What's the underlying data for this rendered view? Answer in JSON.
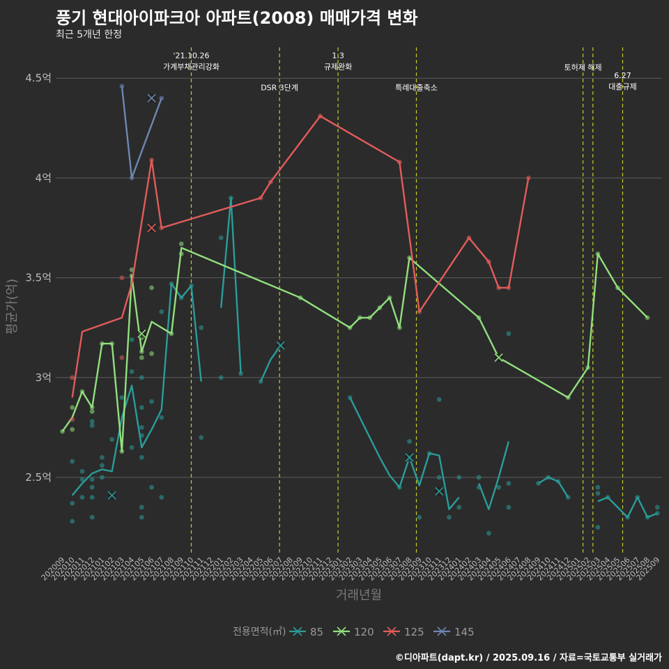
{
  "header": {
    "title": "풍기 현대아이파크아 아파트(2008) 매매가격 변화",
    "subtitle": "최근 5개년 한정",
    "caption": "©디아파트(dapt.kr) / 2025.09.16 / 자료=국토교통부 실거래가"
  },
  "chart_data": {
    "type": "line",
    "xlabel": "거래년월",
    "ylabel": "평균가(억)",
    "ylim": [
      2.1,
      4.6
    ],
    "yticks": [
      {
        "value": 2.5,
        "label": "2.5억"
      },
      {
        "value": 3.0,
        "label": "3억"
      },
      {
        "value": 3.5,
        "label": "3.5억"
      },
      {
        "value": 4.0,
        "label": "4억"
      },
      {
        "value": 4.5,
        "label": "4.5억"
      }
    ],
    "categories": [
      "202009",
      "202010",
      "202011",
      "202012",
      "202101",
      "202102",
      "202103",
      "202104",
      "202105",
      "202106",
      "202107",
      "202108",
      "202109",
      "202110",
      "202111",
      "202112",
      "202201",
      "202202",
      "202203",
      "202204",
      "202205",
      "202206",
      "202207",
      "202208",
      "202209",
      "202210",
      "202211",
      "202212",
      "202301",
      "202302",
      "202303",
      "202304",
      "202305",
      "202306",
      "202307",
      "202308",
      "202309",
      "202310",
      "202311",
      "202312",
      "202401",
      "202402",
      "202403",
      "202404",
      "202405",
      "202406",
      "202407",
      "202408",
      "202409",
      "202410",
      "202411",
      "202412",
      "202501",
      "202502",
      "202503",
      "202504",
      "202505",
      "202506",
      "202507",
      "202508",
      "202509"
    ],
    "events": [
      {
        "x": 13.0,
        "label_lines": [
          "'21.10.26",
          "가계부채관리강화"
        ],
        "y": 4.6
      },
      {
        "x": 21.9,
        "label_lines": [
          "DSR 3단계"
        ],
        "y": 4.44
      },
      {
        "x": 27.8,
        "label_lines": [
          "1.3",
          "규제완화"
        ],
        "y": 4.6
      },
      {
        "x": 35.7,
        "label_lines": [
          "특례대출축소"
        ],
        "y": 4.44
      },
      {
        "x": 52.5,
        "label_lines": [
          "토허제 해제"
        ],
        "y": 4.54
      },
      {
        "x": 53.5,
        "label_lines": [],
        "y": 4.54
      },
      {
        "x": 56.5,
        "label_lines": [
          "6.27",
          "대출규제"
        ],
        "y": 4.5
      }
    ],
    "legend": {
      "title": "전용면적(㎡)",
      "position": "bottom"
    },
    "series": [
      {
        "name": "85",
        "color": "#2a9d99",
        "line_segments": [
          [
            [
              1,
              2.41
            ],
            [
              2,
              2.47
            ],
            [
              3,
              2.52
            ],
            [
              4,
              2.54
            ],
            [
              5,
              2.53
            ],
            [
              6,
              2.8
            ],
            [
              7,
              2.96
            ],
            [
              8,
              2.65
            ],
            [
              9,
              2.74
            ],
            [
              10,
              2.84
            ],
            [
              11,
              3.47
            ],
            [
              12,
              3.4
            ],
            [
              13,
              3.46
            ],
            [
              14,
              2.98
            ]
          ],
          [
            [
              16,
              3.35
            ],
            [
              17,
              3.9
            ],
            [
              18,
              3.02
            ]
          ],
          [
            [
              20,
              2.98
            ],
            [
              21,
              3.09
            ],
            [
              22,
              3.16
            ]
          ],
          [
            [
              29,
              2.9
            ],
            [
              30,
              2.8
            ],
            [
              31,
              2.7
            ],
            [
              32,
              2.6
            ],
            [
              33,
              2.51
            ],
            [
              34,
              2.45
            ],
            [
              35,
              2.6
            ],
            [
              36,
              2.46
            ],
            [
              37,
              2.62
            ],
            [
              38,
              2.61
            ],
            [
              39,
              2.34
            ],
            [
              40,
              2.4
            ]
          ],
          [
            [
              42,
              2.47
            ],
            [
              43,
              2.34
            ],
            [
              44,
              2.5
            ],
            [
              45,
              2.68
            ]
          ],
          [
            [
              48,
              2.47
            ],
            [
              49,
              2.5
            ],
            [
              50,
              2.48
            ],
            [
              51,
              2.4
            ]
          ],
          [
            [
              54,
              2.38
            ],
            [
              55,
              2.4
            ],
            [
              57,
              2.3
            ],
            [
              58,
              2.4
            ],
            [
              59,
              2.3
            ],
            [
              60,
              2.32
            ]
          ]
        ],
        "points": [
          [
            1,
            2.28
          ],
          [
            1,
            2.37
          ],
          [
            1,
            2.58
          ],
          [
            2,
            2.4
          ],
          [
            2,
            2.49
          ],
          [
            2,
            2.53
          ],
          [
            3,
            2.3
          ],
          [
            3,
            2.4
          ],
          [
            3,
            2.45
          ],
          [
            3,
            2.49
          ],
          [
            3,
            2.76
          ],
          [
            3,
            2.78
          ],
          [
            4,
            2.5
          ],
          [
            4,
            2.56
          ],
          [
            4,
            2.6
          ],
          [
            5,
            2.69
          ],
          [
            6,
            2.9
          ],
          [
            7,
            2.65
          ],
          [
            7,
            3.03
          ],
          [
            7,
            3.19
          ],
          [
            8,
            2.3
          ],
          [
            8,
            2.35
          ],
          [
            8,
            2.6
          ],
          [
            8,
            2.71
          ],
          [
            8,
            2.75
          ],
          [
            8,
            2.85
          ],
          [
            8,
            3.0
          ],
          [
            9,
            2.45
          ],
          [
            9,
            2.88
          ],
          [
            10,
            2.4
          ],
          [
            10,
            2.8
          ],
          [
            10,
            3.33
          ],
          [
            11,
            3.47
          ],
          [
            12,
            3.4
          ],
          [
            13,
            3.46
          ],
          [
            14,
            2.7
          ],
          [
            14,
            3.25
          ],
          [
            16,
            3.0
          ],
          [
            16,
            3.7
          ],
          [
            17,
            3.9
          ],
          [
            18,
            3.02
          ],
          [
            20,
            2.98
          ],
          [
            22,
            3.16
          ],
          [
            29,
            2.9
          ],
          [
            34,
            2.45
          ],
          [
            35,
            2.68
          ],
          [
            35,
            2.6
          ],
          [
            36,
            2.3
          ],
          [
            37,
            2.62
          ],
          [
            38,
            2.89
          ],
          [
            38,
            2.5
          ],
          [
            39,
            2.3
          ],
          [
            40,
            2.35
          ],
          [
            40,
            2.5
          ],
          [
            42,
            2.45
          ],
          [
            42,
            2.5
          ],
          [
            43,
            2.22
          ],
          [
            44,
            2.45
          ],
          [
            45,
            2.35
          ],
          [
            45,
            2.47
          ],
          [
            45,
            3.22
          ],
          [
            48,
            2.47
          ],
          [
            49,
            2.5
          ],
          [
            50,
            2.48
          ],
          [
            51,
            2.4
          ],
          [
            54,
            2.25
          ],
          [
            54,
            2.42
          ],
          [
            54,
            2.45
          ],
          [
            55,
            2.4
          ],
          [
            57,
            2.3
          ],
          [
            58,
            2.4
          ],
          [
            59,
            2.3
          ],
          [
            60,
            2.32
          ],
          [
            60,
            2.35
          ]
        ],
        "cross_points": [
          [
            5,
            2.41
          ],
          [
            22,
            3.16
          ],
          [
            35,
            2.6
          ],
          [
            38,
            2.43
          ]
        ]
      },
      {
        "name": "120",
        "color": "#92e07e",
        "line_segments": [
          [
            [
              0,
              2.73
            ],
            [
              1,
              2.8
            ],
            [
              2,
              2.93
            ],
            [
              3,
              2.85
            ],
            [
              4,
              3.17
            ],
            [
              5,
              3.17
            ],
            [
              6,
              2.63
            ],
            [
              7,
              3.51
            ],
            [
              8,
              3.13
            ],
            [
              9,
              3.28
            ],
            [
              11,
              3.22
            ],
            [
              12,
              3.65
            ],
            [
              24,
              3.4
            ],
            [
              29,
              3.25
            ],
            [
              30,
              3.3
            ],
            [
              31,
              3.3
            ],
            [
              32,
              3.35
            ],
            [
              33,
              3.4
            ],
            [
              34,
              3.25
            ],
            [
              35,
              3.6
            ],
            [
              42,
              3.3
            ],
            [
              44,
              3.1
            ],
            [
              51,
              2.9
            ],
            [
              53,
              3.05
            ],
            [
              54,
              3.62
            ],
            [
              56,
              3.45
            ],
            [
              59,
              3.3
            ]
          ]
        ],
        "points": [
          [
            0,
            2.73
          ],
          [
            1,
            2.74
          ],
          [
            1,
            2.85
          ],
          [
            2,
            2.93
          ],
          [
            3,
            2.83
          ],
          [
            3,
            2.85
          ],
          [
            4,
            3.17
          ],
          [
            5,
            3.17
          ],
          [
            6,
            2.63
          ],
          [
            7,
            3.54
          ],
          [
            7,
            3.51
          ],
          [
            8,
            3.1
          ],
          [
            8,
            3.13
          ],
          [
            8,
            3.2
          ],
          [
            9,
            3.12
          ],
          [
            9,
            3.45
          ],
          [
            11,
            3.22
          ],
          [
            12,
            3.62
          ],
          [
            12,
            3.67
          ],
          [
            24,
            3.4
          ],
          [
            29,
            3.25
          ],
          [
            30,
            3.3
          ],
          [
            31,
            3.3
          ],
          [
            32,
            3.35
          ],
          [
            33,
            3.4
          ],
          [
            34,
            3.25
          ],
          [
            35,
            3.6
          ],
          [
            42,
            3.3
          ],
          [
            51,
            2.9
          ],
          [
            53,
            3.05
          ],
          [
            54,
            3.62
          ],
          [
            56,
            3.45
          ],
          [
            59,
            3.3
          ]
        ],
        "cross_points": [
          [
            8,
            3.22
          ],
          [
            44,
            3.1
          ]
        ]
      },
      {
        "name": "125",
        "color": "#e25c5c",
        "line_segments": [
          [
            [
              1,
              2.9
            ],
            [
              2,
              3.23
            ],
            [
              6,
              3.3
            ],
            [
              7,
              3.47
            ],
            [
              9,
              4.09
            ],
            [
              10,
              3.75
            ],
            [
              20,
              3.9
            ],
            [
              21,
              3.98
            ],
            [
              26,
              4.31
            ],
            [
              34,
              4.08
            ],
            [
              36,
              3.33
            ],
            [
              41,
              3.7
            ],
            [
              43,
              3.58
            ],
            [
              44,
              3.45
            ],
            [
              45,
              3.45
            ],
            [
              47,
              4.0
            ]
          ]
        ],
        "points": [
          [
            1,
            3.0
          ],
          [
            1,
            2.79
          ],
          [
            6,
            3.5
          ],
          [
            6,
            3.1
          ],
          [
            9,
            4.09
          ],
          [
            10,
            3.75
          ],
          [
            20,
            3.9
          ],
          [
            21,
            3.98
          ],
          [
            26,
            4.31
          ],
          [
            34,
            4.08
          ],
          [
            36,
            3.33
          ],
          [
            41,
            3.7
          ],
          [
            43,
            3.58
          ],
          [
            44,
            3.45
          ],
          [
            45,
            3.45
          ],
          [
            47,
            4.0
          ]
        ],
        "cross_points": [
          [
            9,
            3.75
          ]
        ]
      },
      {
        "name": "145",
        "color": "#6d87b4",
        "line_segments": [
          [
            [
              6,
              4.46
            ],
            [
              7,
              4.0
            ],
            [
              10,
              4.4
            ]
          ]
        ],
        "points": [
          [
            6,
            4.46
          ],
          [
            7,
            4.0
          ],
          [
            10,
            4.4
          ]
        ],
        "cross_points": [
          [
            9,
            4.4
          ]
        ]
      }
    ]
  }
}
